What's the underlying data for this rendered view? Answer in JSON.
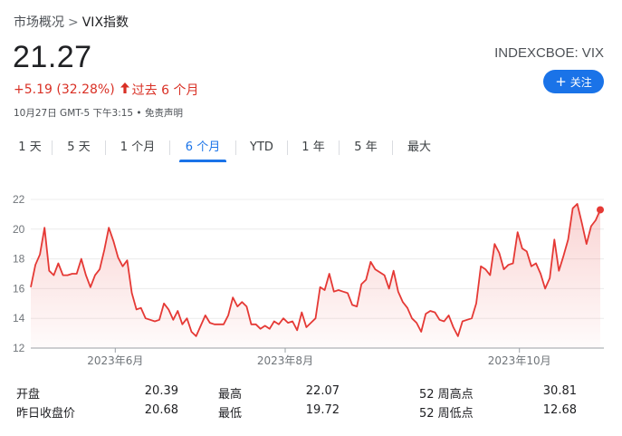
{
  "breadcrumb": {
    "parent": "市场概况",
    "separator": ">",
    "current": "VIX指数"
  },
  "quote": {
    "price": "21.27",
    "change": "+5.19 (32.28%)",
    "arrow_icon": "arrow-up-icon",
    "period": "过去 6 个月",
    "meta": "10月27日 GMT-5 下午3:15 • 免责声明",
    "exchange": "INDEXCBOE: VIX",
    "follow_label": "关注"
  },
  "tabs": [
    {
      "label": "1 天"
    },
    {
      "label": "5 天"
    },
    {
      "label": "1 个月"
    },
    {
      "label": "6 个月"
    },
    {
      "label": "YTD"
    },
    {
      "label": "1 年"
    },
    {
      "label": "5 年"
    },
    {
      "label": "最大"
    }
  ],
  "active_tab": "6 个月",
  "colors": {
    "line": "#e53935",
    "accent": "#1a73e8",
    "negative": "#d93025"
  },
  "chart_data": {
    "type": "line",
    "ylim": [
      12,
      22
    ],
    "yticks": [
      "22",
      "20",
      "18",
      "16",
      "14",
      "12"
    ],
    "xticks": [
      "2023年6月",
      "2023年8月",
      "2023年10月"
    ],
    "grid": true,
    "values": [
      16.1,
      17.6,
      18.3,
      20.1,
      17.2,
      16.9,
      17.7,
      16.9,
      16.9,
      17.0,
      17.0,
      18.0,
      16.9,
      16.1,
      16.9,
      17.3,
      18.6,
      20.1,
      19.2,
      18.1,
      17.5,
      17.9,
      15.7,
      14.6,
      14.7,
      14.0,
      13.9,
      13.8,
      13.9,
      15.0,
      14.6,
      13.9,
      14.5,
      13.6,
      14.0,
      13.1,
      12.8,
      13.5,
      14.2,
      13.7,
      13.6,
      13.6,
      13.6,
      14.2,
      15.4,
      14.8,
      15.1,
      14.8,
      13.6,
      13.6,
      13.3,
      13.5,
      13.3,
      13.8,
      13.6,
      14.0,
      13.7,
      13.8,
      13.2,
      14.4,
      13.4,
      13.7,
      14.0,
      16.1,
      15.9,
      17.0,
      15.8,
      15.9,
      15.8,
      15.7,
      14.9,
      14.8,
      16.3,
      16.6,
      17.8,
      17.3,
      17.1,
      16.9,
      16.0,
      17.2,
      15.8,
      15.1,
      14.7,
      14.0,
      13.7,
      13.1,
      14.3,
      14.5,
      14.4,
      13.9,
      13.8,
      14.2,
      13.4,
      12.8,
      13.8,
      13.9,
      14.0,
      15.0,
      17.5,
      17.3,
      16.9,
      19.0,
      18.4,
      17.3,
      17.6,
      17.7,
      19.8,
      18.7,
      18.5,
      17.5,
      17.7,
      17.0,
      16.0,
      16.7,
      19.3,
      17.2,
      18.2,
      19.3,
      21.4,
      21.7,
      20.4,
      19.0,
      20.2,
      20.6,
      21.3
    ]
  },
  "stats": [
    {
      "label": "开盘",
      "value": "20.39"
    },
    {
      "label": "最高",
      "value": "22.07"
    },
    {
      "label": "52 周高点",
      "value": "30.81"
    },
    {
      "label": "昨日收盘价",
      "value": "20.68"
    },
    {
      "label": "最低",
      "value": "19.72"
    },
    {
      "label": "52 周低点",
      "value": "12.68"
    }
  ]
}
